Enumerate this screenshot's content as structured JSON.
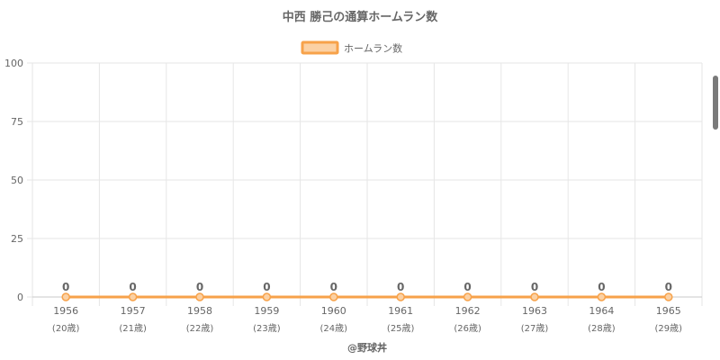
{
  "colors": {
    "line": "#f7a24a",
    "legend_fill": "#fbd1a4",
    "grid": "#e6e6e6",
    "axis": "#c8c8c8",
    "text": "#666666"
  },
  "credit": "@野球丼",
  "chart_data": {
    "type": "line",
    "title": "中西 勝己の通算ホームラン数",
    "legend_position": "top-center",
    "grid": true,
    "categories": [
      "1956",
      "1957",
      "1958",
      "1959",
      "1960",
      "1961",
      "1962",
      "1963",
      "1964",
      "1965"
    ],
    "category_sublabels": [
      "(20歳)",
      "(21歳)",
      "(22歳)",
      "(23歳)",
      "(24歳)",
      "(25歳)",
      "(26歳)",
      "(27歳)",
      "(28歳)",
      "(29歳)"
    ],
    "ylim": [
      0,
      100
    ],
    "yticks": [
      0,
      25,
      50,
      75,
      100
    ],
    "series": [
      {
        "name": "ホームラン数",
        "values": [
          0,
          0,
          0,
          0,
          0,
          0,
          0,
          0,
          0,
          0
        ]
      }
    ]
  }
}
